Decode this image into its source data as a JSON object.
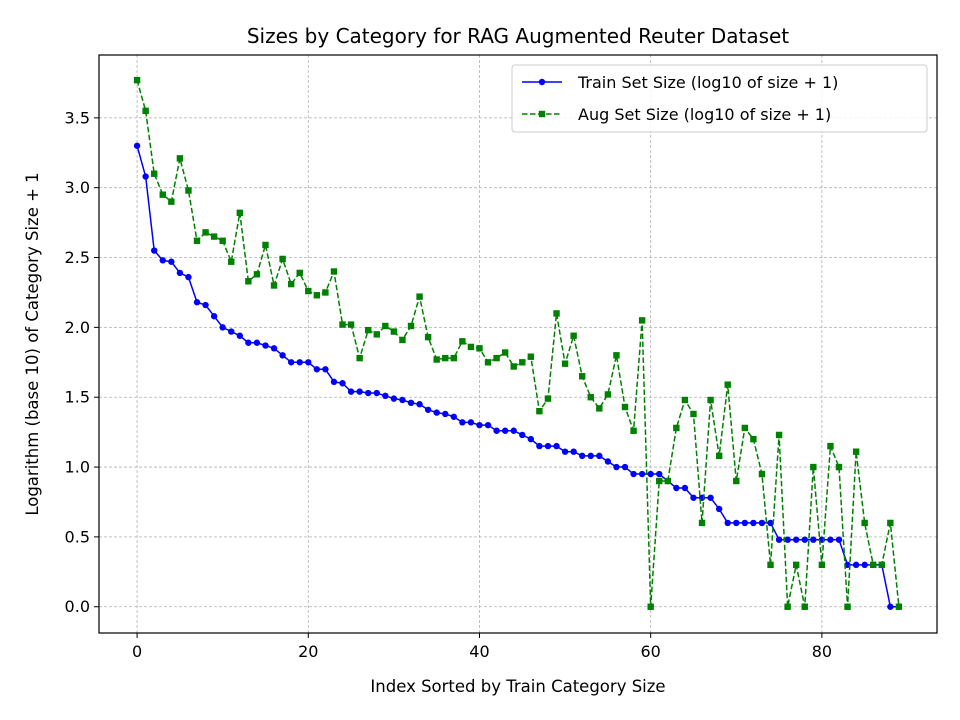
{
  "chart_data": {
    "type": "line",
    "title": "Sizes by Category for RAG Augmented Reuter Dataset",
    "xlabel": "Index Sorted by Train Category Size",
    "ylabel": "Logarithm (base 10) of Category Size + 1",
    "xlim": [
      -4.45,
      93.45
    ],
    "ylim": [
      -0.188,
      3.95
    ],
    "xticks": [
      0,
      20,
      40,
      60,
      80
    ],
    "yticks": [
      0.0,
      0.5,
      1.0,
      1.5,
      2.0,
      2.5,
      3.0,
      3.5
    ],
    "ytick_labels": [
      "0.0",
      "0.5",
      "1.0",
      "1.5",
      "2.0",
      "2.5",
      "3.0",
      "3.5"
    ],
    "grid": true,
    "legend_position": "top-right",
    "series": [
      {
        "name": "Train Set Size (log10 of size + 1)",
        "color": "#0000ff",
        "line_style": "solid",
        "marker": "circle",
        "values": [
          3.3,
          3.08,
          2.55,
          2.48,
          2.47,
          2.39,
          2.36,
          2.18,
          2.16,
          2.08,
          2.0,
          1.97,
          1.94,
          1.89,
          1.89,
          1.87,
          1.85,
          1.8,
          1.75,
          1.75,
          1.75,
          1.7,
          1.7,
          1.61,
          1.6,
          1.54,
          1.54,
          1.53,
          1.53,
          1.51,
          1.49,
          1.48,
          1.46,
          1.45,
          1.41,
          1.39,
          1.38,
          1.36,
          1.32,
          1.32,
          1.3,
          1.3,
          1.26,
          1.26,
          1.26,
          1.23,
          1.2,
          1.15,
          1.15,
          1.15,
          1.11,
          1.11,
          1.08,
          1.08,
          1.08,
          1.04,
          1.0,
          1.0,
          0.95,
          0.95,
          0.95,
          0.95,
          0.9,
          0.85,
          0.85,
          0.78,
          0.78,
          0.78,
          0.7,
          0.6,
          0.6,
          0.6,
          0.6,
          0.6,
          0.6,
          0.48,
          0.48,
          0.48,
          0.48,
          0.48,
          0.48,
          0.48,
          0.48,
          0.3,
          0.3,
          0.3,
          0.3,
          0.3,
          0.0,
          0.0
        ]
      },
      {
        "name": "Aug Set Size (log10 of size + 1)",
        "color": "#008000",
        "line_style": "dashed",
        "marker": "square",
        "values": [
          3.77,
          3.55,
          3.1,
          2.95,
          2.9,
          3.21,
          2.98,
          2.62,
          2.68,
          2.65,
          2.62,
          2.47,
          2.82,
          2.33,
          2.38,
          2.59,
          2.3,
          2.49,
          2.31,
          2.39,
          2.26,
          2.23,
          2.25,
          2.4,
          2.02,
          2.02,
          1.78,
          1.98,
          1.95,
          2.01,
          1.97,
          1.91,
          2.01,
          2.22,
          1.93,
          1.77,
          1.78,
          1.78,
          1.9,
          1.86,
          1.85,
          1.75,
          1.78,
          1.82,
          1.72,
          1.75,
          1.79,
          1.4,
          1.49,
          2.1,
          1.74,
          1.94,
          1.65,
          1.5,
          1.42,
          1.52,
          1.8,
          1.43,
          1.26,
          2.05,
          0.0,
          0.9,
          0.9,
          1.28,
          1.48,
          1.38,
          0.6,
          1.48,
          1.08,
          1.59,
          0.9,
          1.28,
          1.2,
          0.95,
          0.3,
          1.23,
          0.0,
          0.3,
          0.0,
          1.0,
          0.3,
          1.15,
          1.0,
          0.0,
          1.11,
          0.6,
          0.3,
          0.3,
          0.6,
          0.0
        ]
      }
    ]
  }
}
